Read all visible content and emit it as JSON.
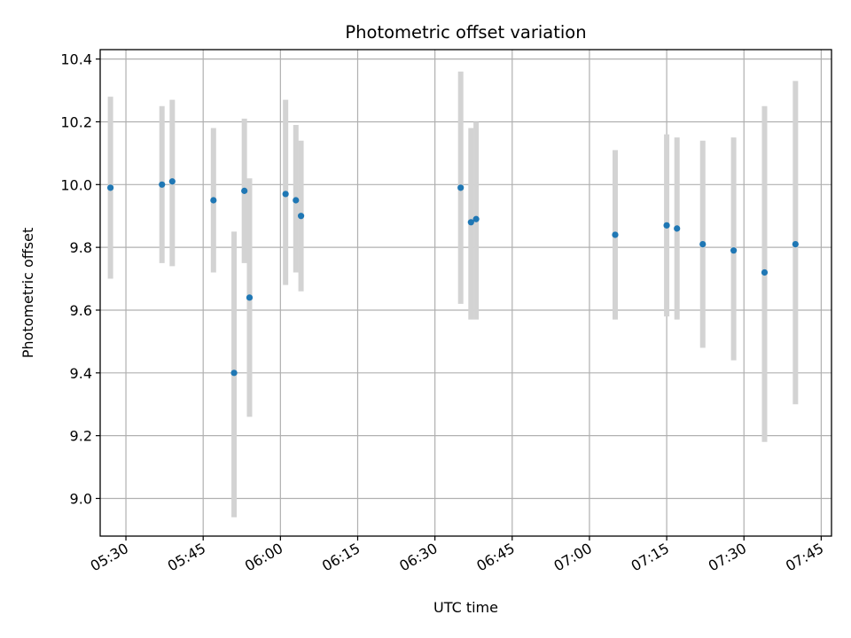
{
  "chart_data": {
    "type": "scatter",
    "title": "Photometric offset variation",
    "xlabel": "UTC time",
    "ylabel": "Photometric offset",
    "grid": true,
    "xlim": [
      "05:25",
      "07:47"
    ],
    "ylim": [
      8.88,
      10.43
    ],
    "x_ticks": [
      "05:30",
      "05:45",
      "06:00",
      "06:15",
      "06:30",
      "06:45",
      "07:00",
      "07:15",
      "07:30",
      "07:45"
    ],
    "y_ticks": [
      "9.0",
      "9.2",
      "9.4",
      "9.6",
      "9.8",
      "10.0",
      "10.2",
      "10.4"
    ],
    "point_color": "#1f77b4",
    "errorbar_color": "#d3d3d3",
    "series": [
      {
        "points": [
          {
            "x": "05:27",
            "y": 9.99,
            "ylow": 9.7,
            "yhigh": 10.28
          },
          {
            "x": "05:37",
            "y": 10.0,
            "ylow": 9.75,
            "yhigh": 10.25
          },
          {
            "x": "05:39",
            "y": 10.01,
            "ylow": 9.74,
            "yhigh": 10.27
          },
          {
            "x": "05:47",
            "y": 9.95,
            "ylow": 9.72,
            "yhigh": 10.18
          },
          {
            "x": "05:51",
            "y": 9.4,
            "ylow": 8.94,
            "yhigh": 9.85
          },
          {
            "x": "05:53",
            "y": 9.98,
            "ylow": 9.75,
            "yhigh": 10.21
          },
          {
            "x": "05:54",
            "y": 9.64,
            "ylow": 9.26,
            "yhigh": 10.02
          },
          {
            "x": "06:01",
            "y": 9.97,
            "ylow": 9.68,
            "yhigh": 10.27
          },
          {
            "x": "06:03",
            "y": 9.95,
            "ylow": 9.72,
            "yhigh": 10.19
          },
          {
            "x": "06:04",
            "y": 9.9,
            "ylow": 9.66,
            "yhigh": 10.14
          },
          {
            "x": "06:35",
            "y": 9.99,
            "ylow": 9.62,
            "yhigh": 10.36
          },
          {
            "x": "06:37",
            "y": 9.88,
            "ylow": 9.57,
            "yhigh": 10.18
          },
          {
            "x": "06:38",
            "y": 9.89,
            "ylow": 9.57,
            "yhigh": 10.2
          },
          {
            "x": "07:05",
            "y": 9.84,
            "ylow": 9.57,
            "yhigh": 10.11
          },
          {
            "x": "07:15",
            "y": 9.87,
            "ylow": 9.58,
            "yhigh": 10.16
          },
          {
            "x": "07:17",
            "y": 9.86,
            "ylow": 9.57,
            "yhigh": 10.15
          },
          {
            "x": "07:22",
            "y": 9.81,
            "ylow": 9.48,
            "yhigh": 10.14
          },
          {
            "x": "07:28",
            "y": 9.79,
            "ylow": 9.44,
            "yhigh": 10.15
          },
          {
            "x": "07:34",
            "y": 9.72,
            "ylow": 9.18,
            "yhigh": 10.25
          },
          {
            "x": "07:40",
            "y": 9.81,
            "ylow": 9.3,
            "yhigh": 10.33
          }
        ]
      }
    ]
  }
}
